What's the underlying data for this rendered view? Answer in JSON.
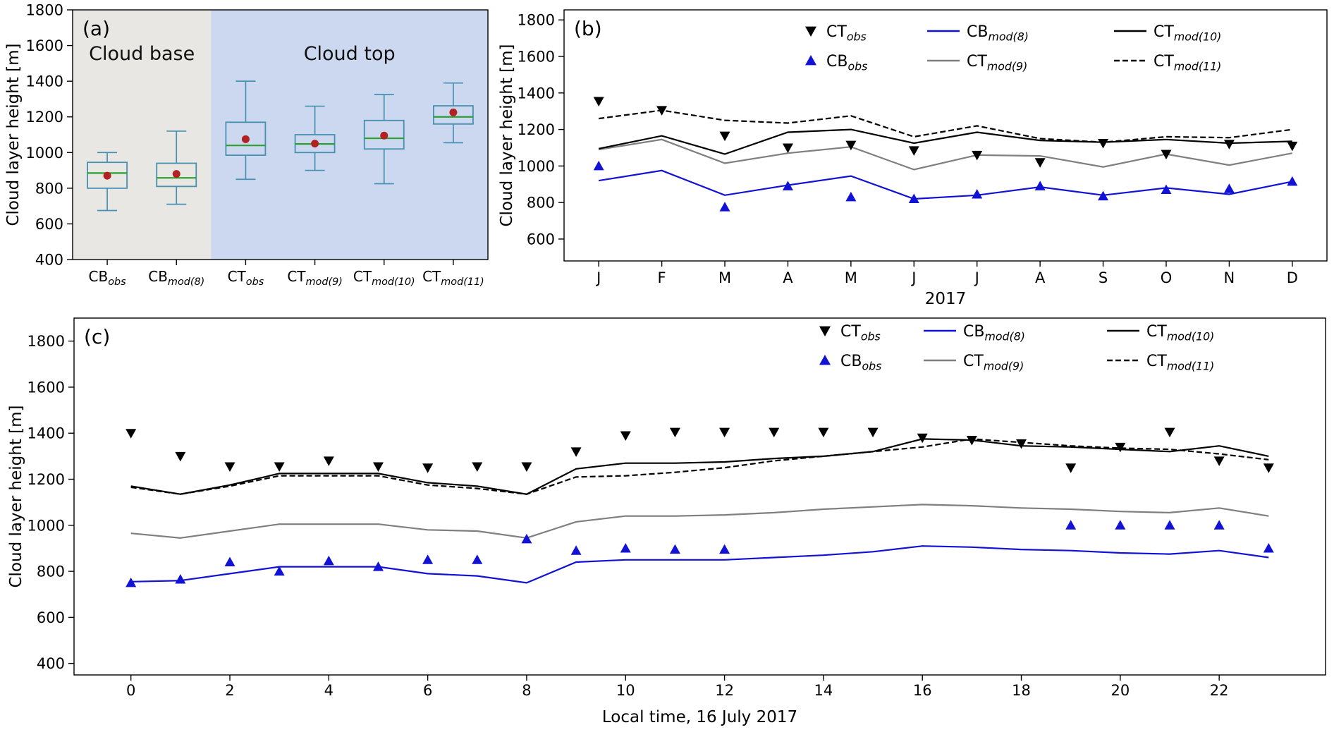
{
  "figure": {
    "background": "#ffffff",
    "colors": {
      "blue": "#1212d6",
      "gray": "#7f7f7f",
      "black": "#000000",
      "box_edge": "#4690b0",
      "median": "#2ca02c",
      "mean": "#b22222",
      "cloud_base_bg": "#e8e7e3",
      "cloud_top_bg": "#ccd8f0",
      "axis": "#000000"
    }
  },
  "chart_data": [
    {
      "id": "a",
      "type": "box",
      "panel_label": "(a)",
      "ylabel": "Cloud layer height [m]",
      "ylim": [
        400,
        1800
      ],
      "yticks": [
        400,
        600,
        800,
        1000,
        1200,
        1400,
        1600,
        1800
      ],
      "regions": [
        {
          "label": "Cloud base",
          "start": 0,
          "end": 2,
          "color_key": "cloud_base_bg",
          "label_y": 1555
        },
        {
          "label": "Cloud top",
          "start": 2,
          "end": 6,
          "color_key": "cloud_top_bg",
          "label_y": 1555
        }
      ],
      "categories": [
        {
          "base": "CB",
          "sub": "obs"
        },
        {
          "base": "CB",
          "sub": "mod(8)"
        },
        {
          "base": "CT",
          "sub": "obs"
        },
        {
          "base": "CT",
          "sub": "mod(9)"
        },
        {
          "base": "CT",
          "sub": "mod(10)"
        },
        {
          "base": "CT",
          "sub": "mod(11)"
        }
      ],
      "boxes": [
        {
          "whisker_low": 675,
          "q1": 800,
          "median": 885,
          "q3": 945,
          "whisker_high": 1000,
          "mean": 870
        },
        {
          "whisker_low": 710,
          "q1": 810,
          "median": 858,
          "q3": 940,
          "whisker_high": 1120,
          "mean": 880
        },
        {
          "whisker_low": 850,
          "q1": 985,
          "median": 1040,
          "q3": 1170,
          "whisker_high": 1400,
          "mean": 1075
        },
        {
          "whisker_low": 900,
          "q1": 1000,
          "median": 1048,
          "q3": 1100,
          "whisker_high": 1260,
          "mean": 1050
        },
        {
          "whisker_low": 825,
          "q1": 1020,
          "median": 1080,
          "q3": 1180,
          "whisker_high": 1325,
          "mean": 1095
        },
        {
          "whisker_low": 1055,
          "q1": 1160,
          "median": 1200,
          "q3": 1262,
          "whisker_high": 1390,
          "mean": 1225
        }
      ]
    },
    {
      "id": "b",
      "type": "line",
      "panel_label": "(b)",
      "ylabel": "Cloud layer height [m]",
      "xlabel": "2017",
      "ylim": [
        480,
        1855
      ],
      "yticks": [
        600,
        800,
        1000,
        1200,
        1400,
        1600,
        1800
      ],
      "x_categories": [
        "J",
        "F",
        "M",
        "A",
        "M",
        "J",
        "J",
        "A",
        "S",
        "O",
        "N",
        "D"
      ],
      "series": [
        {
          "base": "CB",
          "sub": "mod(8)",
          "style": "line",
          "color_key": "blue",
          "values": [
            920,
            975,
            840,
            895,
            945,
            820,
            840,
            885,
            840,
            880,
            845,
            915
          ]
        },
        {
          "base": "CT",
          "sub": "mod(9)",
          "style": "line",
          "color_key": "gray",
          "values": [
            1090,
            1145,
            1015,
            1070,
            1105,
            980,
            1060,
            1055,
            995,
            1065,
            1005,
            1070
          ]
        },
        {
          "base": "CT",
          "sub": "mod(10)",
          "style": "line",
          "color_key": "black",
          "values": [
            1095,
            1165,
            1065,
            1185,
            1200,
            1125,
            1185,
            1140,
            1130,
            1145,
            1125,
            1135
          ]
        },
        {
          "base": "CT",
          "sub": "mod(11)",
          "style": "dashed",
          "color_key": "black",
          "values": [
            1260,
            1305,
            1250,
            1235,
            1275,
            1160,
            1220,
            1150,
            1130,
            1160,
            1155,
            1200
          ]
        },
        {
          "base": "CT",
          "sub": "obs",
          "style": "marker-down",
          "color_key": "black",
          "values": [
            1355,
            1305,
            1165,
            1100,
            1115,
            1085,
            1060,
            1020,
            1125,
            1065,
            1120,
            1110
          ]
        },
        {
          "base": "CB",
          "sub": "obs",
          "style": "marker-up",
          "color_key": "blue",
          "values": [
            1000,
            null,
            775,
            890,
            830,
            820,
            845,
            890,
            835,
            870,
            875,
            915
          ]
        }
      ],
      "legend": {
        "entries": [
          {
            "base": "CT",
            "sub": "obs",
            "sample": "marker-down",
            "color_key": "black",
            "col": 0,
            "row": 0
          },
          {
            "base": "CB",
            "sub": "obs",
            "sample": "marker-up",
            "color_key": "blue",
            "col": 0,
            "row": 1
          },
          {
            "base": "CB",
            "sub": "mod(8)",
            "sample": "line",
            "color_key": "blue",
            "col": 1,
            "row": 0
          },
          {
            "base": "CT",
            "sub": "mod(9)",
            "sample": "line",
            "color_key": "gray",
            "col": 1,
            "row": 1
          },
          {
            "base": "CT",
            "sub": "mod(10)",
            "sample": "line",
            "color_key": "black",
            "col": 2,
            "row": 0
          },
          {
            "base": "CT",
            "sub": "mod(11)",
            "sample": "line-dashed",
            "color_key": "black",
            "col": 2,
            "row": 1
          }
        ]
      }
    },
    {
      "id": "c",
      "type": "line",
      "panel_label": "(c)",
      "ylabel": "Cloud layer height [m]",
      "xlabel": "Local time, 16 July 2017",
      "ylim": [
        350,
        1900
      ],
      "yticks": [
        400,
        600,
        800,
        1000,
        1200,
        1400,
        1600,
        1800
      ],
      "x": [
        0,
        1,
        2,
        3,
        4,
        5,
        6,
        7,
        8,
        9,
        10,
        11,
        12,
        13,
        14,
        15,
        16,
        17,
        18,
        19,
        20,
        21,
        22,
        23
      ],
      "xticks": [
        0,
        2,
        4,
        6,
        8,
        10,
        12,
        14,
        16,
        18,
        20,
        22
      ],
      "series": [
        {
          "base": "CB",
          "sub": "mod(8)",
          "style": "line",
          "color_key": "blue",
          "values": [
            755,
            760,
            790,
            820,
            820,
            820,
            790,
            780,
            750,
            840,
            850,
            850,
            850,
            860,
            870,
            885,
            910,
            905,
            895,
            890,
            880,
            875,
            890,
            860
          ]
        },
        {
          "base": "CT",
          "sub": "mod(9)",
          "style": "line",
          "color_key": "gray",
          "values": [
            965,
            945,
            975,
            1005,
            1005,
            1005,
            980,
            975,
            945,
            1015,
            1040,
            1040,
            1045,
            1055,
            1070,
            1080,
            1090,
            1085,
            1075,
            1070,
            1060,
            1055,
            1075,
            1040
          ]
        },
        {
          "base": "CT",
          "sub": "mod(10)",
          "style": "line",
          "color_key": "black",
          "values": [
            1170,
            1135,
            1175,
            1225,
            1225,
            1225,
            1185,
            1170,
            1135,
            1245,
            1270,
            1270,
            1275,
            1290,
            1300,
            1320,
            1375,
            1370,
            1345,
            1340,
            1330,
            1320,
            1345,
            1300
          ]
        },
        {
          "base": "CT",
          "sub": "mod(11)",
          "style": "dashed",
          "color_key": "black",
          "values": [
            1165,
            1135,
            1170,
            1215,
            1215,
            1215,
            1175,
            1160,
            1135,
            1210,
            1215,
            1230,
            1250,
            1280,
            1300,
            1320,
            1340,
            1375,
            1360,
            1345,
            1335,
            1330,
            1310,
            1285
          ]
        },
        {
          "base": "CT",
          "sub": "obs",
          "style": "marker-down",
          "color_key": "black",
          "values": [
            1400,
            1300,
            1255,
            1255,
            1280,
            1255,
            1250,
            1255,
            1255,
            1320,
            1390,
            1405,
            1405,
            1405,
            1405,
            1405,
            1380,
            1370,
            1355,
            1250,
            1340,
            1405,
            1280,
            1250
          ]
        },
        {
          "base": "CB",
          "sub": "obs",
          "style": "marker-up",
          "color_key": "blue",
          "values": [
            750,
            765,
            840,
            800,
            845,
            820,
            850,
            850,
            940,
            890,
            900,
            895,
            895,
            null,
            null,
            null,
            null,
            null,
            null,
            1000,
            1000,
            1000,
            1000,
            900
          ]
        }
      ],
      "legend": {
        "entries": [
          {
            "base": "CT",
            "sub": "obs",
            "sample": "marker-down",
            "color_key": "black",
            "col": 0,
            "row": 0
          },
          {
            "base": "CB",
            "sub": "obs",
            "sample": "marker-up",
            "color_key": "blue",
            "col": 0,
            "row": 1
          },
          {
            "base": "CB",
            "sub": "mod(8)",
            "sample": "line",
            "color_key": "blue",
            "col": 1,
            "row": 0
          },
          {
            "base": "CT",
            "sub": "mod(9)",
            "sample": "line",
            "color_key": "gray",
            "col": 1,
            "row": 1
          },
          {
            "base": "CT",
            "sub": "mod(10)",
            "sample": "line",
            "color_key": "black",
            "col": 2,
            "row": 0
          },
          {
            "base": "CT",
            "sub": "mod(11)",
            "sample": "line-dashed",
            "color_key": "black",
            "col": 2,
            "row": 1
          }
        ]
      }
    }
  ]
}
